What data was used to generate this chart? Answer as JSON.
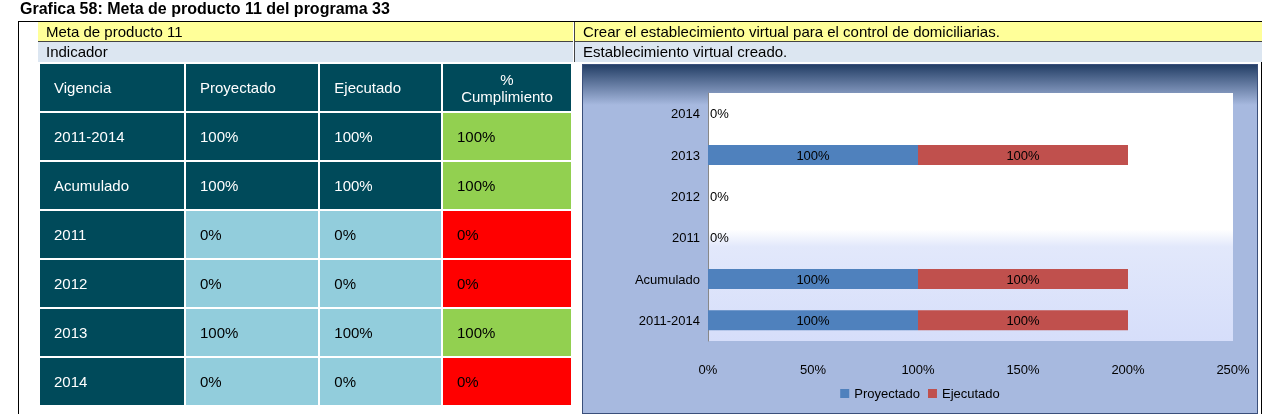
{
  "chart_data": [
    {
      "type": "heatmap",
      "title": "Meta de producto 11",
      "subtitle": "Indicador",
      "annotations": [
        "Grafica 58: Meta de producto 11 del programa 33"
      ],
      "ylabel": "Vigencia",
      "categories": [
        "Proyectado",
        "Ejecutado",
        "% Cumplimiento"
      ],
      "y_categories": [
        "2011-2014",
        "Acumulado",
        "2011",
        "2012",
        "2013",
        "2014"
      ],
      "cells": [
        [
          100,
          100,
          100
        ],
        [
          100,
          100,
          100
        ],
        [
          0,
          0,
          0
        ],
        [
          0,
          0,
          0
        ],
        [
          100,
          100,
          100
        ],
        [
          0,
          0,
          0
        ]
      ],
      "cell_labels": [
        [
          "100%",
          "100%",
          "100%"
        ],
        [
          "100%",
          "100%",
          "100%"
        ],
        [
          "0%",
          "0%",
          "0%"
        ],
        [
          "0%",
          "0%",
          "0%"
        ],
        [
          "100%",
          "100%",
          "100%"
        ],
        [
          "0%",
          "0%",
          "0%"
        ]
      ]
    },
    {
      "type": "bar",
      "orientation": "horizontal",
      "stacked": true,
      "title": "Crear el establecimiento virtual para el control de domiciliarias.",
      "subtitle": "Establecimiento virtual creado.",
      "categories": [
        "2014",
        "2013",
        "2012",
        "2011",
        "Acumulado",
        "2011-2014"
      ],
      "series": [
        {
          "name": "Proyectado",
          "color": "#4f81bd",
          "values": [
            0,
            100,
            0,
            0,
            100,
            100
          ],
          "value_labels": [
            "0%",
            "100%",
            "0%",
            "0%",
            "100%",
            "100%"
          ]
        },
        {
          "name": "Ejecutado",
          "color": "#c0504d",
          "values": [
            0,
            100,
            0,
            0,
            100,
            100
          ],
          "value_labels": [
            null,
            "100%",
            null,
            null,
            "100%",
            "100%"
          ]
        }
      ],
      "xlim": [
        0,
        250
      ],
      "xticks": [
        {
          "value": 0,
          "label": "0%"
        },
        {
          "value": 50,
          "label": "50%"
        },
        {
          "value": 100,
          "label": "100%"
        },
        {
          "value": 150,
          "label": "150%"
        },
        {
          "value": 200,
          "label": "200%"
        },
        {
          "value": 250,
          "label": "250%"
        }
      ],
      "grid": false,
      "legend": "bottom"
    }
  ]
}
